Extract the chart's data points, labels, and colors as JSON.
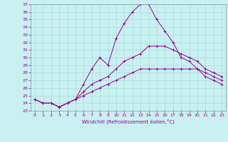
{
  "xlabel": "Windchill (Refroidissement éolien,°C)",
  "background_color": "#c8f0f0",
  "line_color": "#990099",
  "grid_color": "#aadddd",
  "spine_color": "#7799aa",
  "xlim": [
    -0.5,
    23.5
  ],
  "ylim": [
    23,
    37
  ],
  "yticks": [
    23,
    24,
    25,
    26,
    27,
    28,
    29,
    30,
    31,
    32,
    33,
    34,
    35,
    36,
    37
  ],
  "xticks": [
    0,
    1,
    2,
    3,
    4,
    5,
    6,
    7,
    8,
    9,
    10,
    11,
    12,
    13,
    14,
    15,
    16,
    17,
    18,
    19,
    20,
    21,
    22,
    23
  ],
  "series": [
    {
      "x": [
        0,
        1,
        2,
        3,
        4,
        5,
        6,
        7,
        8,
        9,
        10,
        11,
        12,
        13,
        14,
        15,
        16,
        17,
        18,
        19,
        20,
        21,
        22,
        23
      ],
      "y": [
        24.5,
        24.0,
        24.0,
        23.5,
        24.0,
        24.5,
        26.5,
        28.5,
        30.0,
        29.0,
        32.5,
        34.5,
        36.0,
        37.0,
        37.0,
        35.0,
        33.5,
        32.0,
        30.0,
        29.5,
        28.5,
        27.5,
        27.0,
        26.5
      ]
    },
    {
      "x": [
        0,
        1,
        2,
        3,
        4,
        5,
        6,
        7,
        8,
        9,
        10,
        11,
        12,
        13,
        14,
        15,
        16,
        17,
        18,
        19,
        20,
        21,
        22,
        23
      ],
      "y": [
        24.5,
        24.0,
        24.0,
        23.5,
        24.0,
        24.5,
        25.5,
        26.5,
        27.0,
        27.5,
        28.5,
        29.5,
        30.0,
        30.5,
        31.5,
        31.5,
        31.5,
        31.0,
        30.5,
        30.0,
        29.5,
        28.5,
        28.0,
        27.5
      ]
    },
    {
      "x": [
        0,
        1,
        2,
        3,
        4,
        5,
        6,
        7,
        8,
        9,
        10,
        11,
        12,
        13,
        14,
        15,
        16,
        17,
        18,
        19,
        20,
        21,
        22,
        23
      ],
      "y": [
        24.5,
        24.0,
        24.0,
        23.5,
        24.0,
        24.5,
        25.0,
        25.5,
        26.0,
        26.5,
        27.0,
        27.5,
        28.0,
        28.5,
        28.5,
        28.5,
        28.5,
        28.5,
        28.5,
        28.5,
        28.5,
        28.0,
        27.5,
        27.0
      ]
    }
  ]
}
